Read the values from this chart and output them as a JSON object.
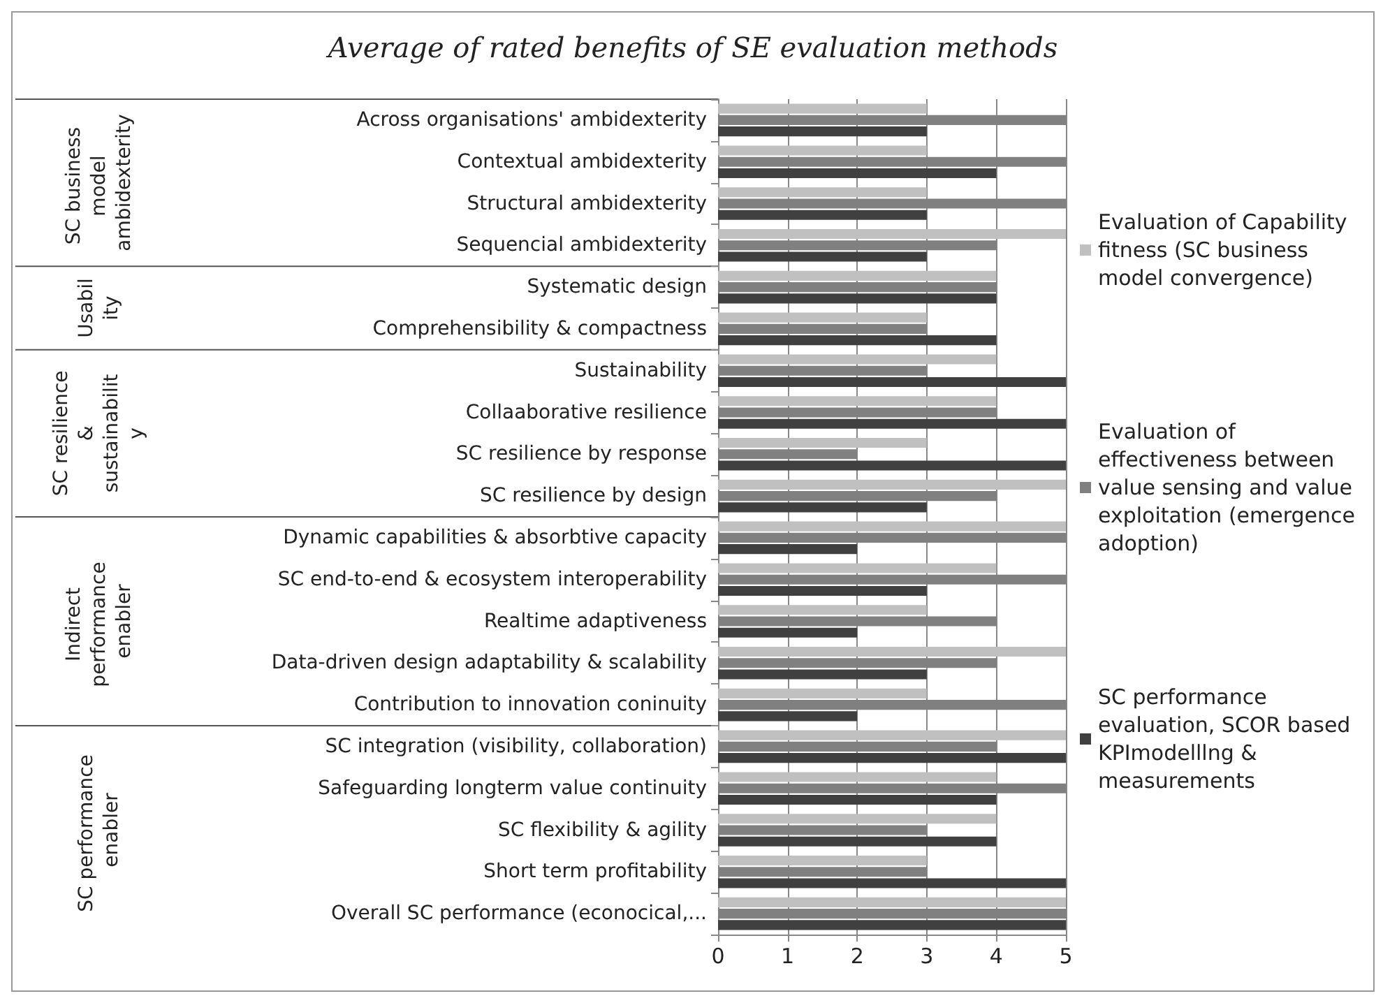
{
  "chart_data": {
    "type": "bar",
    "orientation": "horizontal",
    "title": "Average of rated benefits of SE evaluation methods",
    "categories": [
      "Across organisations' ambidexterity",
      "Contextual ambidexterity",
      "Structural ambidexterity",
      "Sequencial ambidexterity",
      "Systematic design",
      "Comprehensibility & compactness",
      "Sustainability",
      "Collaaborative resilience",
      "SC resilience by response",
      "SC resilience by design",
      "Dynamic capabilities & absorbtive capacity",
      "SC end-to-end & ecosystem interoperability",
      "Realtime adaptiveness",
      "Data-driven design adaptability & scalability",
      "Contribution to innovation coninuity",
      "SC integration (visibility, collaboration)",
      "Safeguarding longterm value continuity",
      "SC flexibility & agility",
      "Short term profitability",
      "Overall SC performance (econocical,..."
    ],
    "series": [
      {
        "name": "Evaluation of Capability fitness (SC business model convergence)",
        "color": "#c0c0c0",
        "values": [
          3,
          3,
          3,
          5,
          4,
          3,
          4,
          4,
          3,
          5,
          5,
          4,
          3,
          5,
          3,
          5,
          4,
          4,
          3,
          5
        ]
      },
      {
        "name": "Evaluation of effectiveness between value sensing and value exploitation (emergence adoption)",
        "color": "#808080",
        "values": [
          5,
          5,
          5,
          4,
          4,
          3,
          3,
          4,
          2,
          4,
          5,
          5,
          4,
          4,
          5,
          4,
          5,
          3,
          3,
          5
        ]
      },
      {
        "name": "SC performance evaluation, SCOR based KPImodelllng & measurements",
        "color": "#404040",
        "values": [
          3,
          4,
          3,
          3,
          4,
          4,
          5,
          5,
          5,
          3,
          2,
          3,
          2,
          3,
          2,
          5,
          4,
          4,
          5,
          5
        ]
      }
    ],
    "annotations": [
      "SC business model ambidexterity",
      "Usability",
      "SC resilience & sustainability",
      "Indirect performance enabler",
      "SC performance enabler"
    ],
    "xlim": [
      0,
      5
    ],
    "xticks": [
      0,
      1,
      2,
      3,
      4,
      5
    ],
    "grid": "x",
    "legend": "right"
  }
}
